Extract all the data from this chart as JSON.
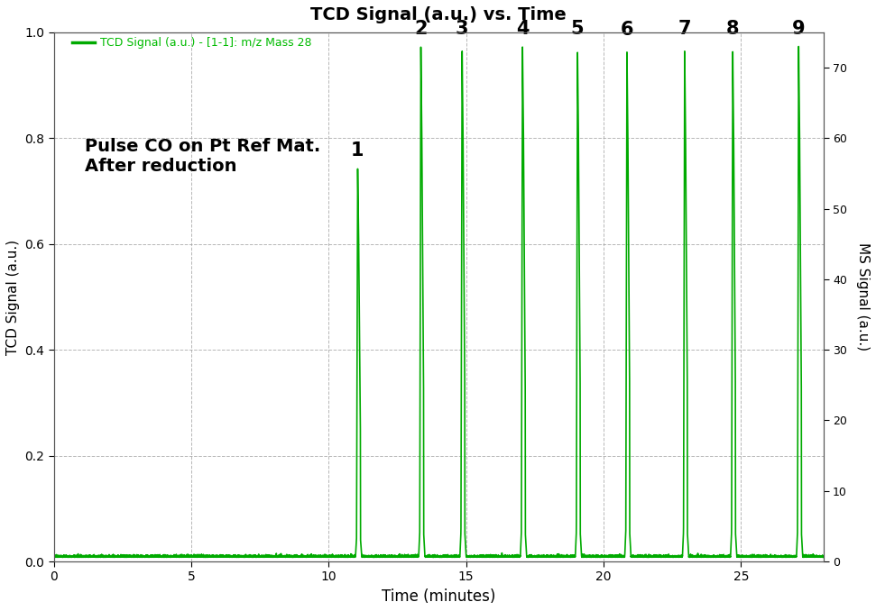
{
  "title": "TCD Signal (a.u.) vs. Time",
  "xlabel": "Time (minutes)",
  "ylabel_left": "TCD Signal (a.u.)",
  "ylabel_right": "MS Signal (a.u.)",
  "legend_label": "TCD Signal (a.u.) - [1-1]: m/z Mass 28",
  "legend_color": "#00bb00",
  "annotation_text": "Pulse CO on Pt Ref Mat.\nAfter reduction",
  "line_color": "#00aa00",
  "xlim": [
    0,
    28
  ],
  "ylim_left": [
    0,
    1.0
  ],
  "ylim_right": [
    0,
    75
  ],
  "yticks_left": [
    0.0,
    0.2,
    0.4,
    0.6,
    0.8,
    1.0
  ],
  "yticks_right": [
    0,
    10,
    20,
    30,
    40,
    50,
    60,
    70
  ],
  "xticks": [
    0,
    5,
    10,
    15,
    20,
    25
  ],
  "pulse_centers": [
    11.05,
    13.35,
    14.85,
    17.05,
    19.05,
    20.85,
    22.95,
    24.7,
    27.1
  ],
  "pulse_peaks": [
    0.745,
    0.975,
    0.975,
    0.975,
    0.975,
    0.972,
    0.975,
    0.975,
    0.975
  ],
  "pulse_labels": [
    "1",
    "2",
    "3",
    "4",
    "5",
    "6",
    "7",
    "8",
    "9"
  ],
  "baseline": 0.008,
  "background_color": "#ffffff",
  "grid_color": "#999999",
  "figsize": [
    9.71,
    6.78
  ],
  "dpi": 100
}
